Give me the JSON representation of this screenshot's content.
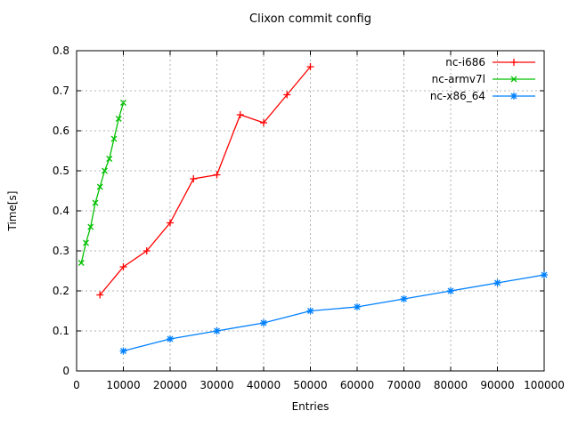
{
  "chart_data": {
    "type": "line",
    "title": "Clixon commit config",
    "xlabel": "Entries",
    "ylabel": "Time[s]",
    "xlim": [
      0,
      100000
    ],
    "ylim": [
      0,
      0.8
    ],
    "grid": true,
    "legend_position": "top-right-inside",
    "background_color": "#ffffff",
    "grid_color": "#b0b0b0",
    "axis_color": "#000000",
    "x_ticks": [
      {
        "value": 0,
        "label": "0"
      },
      {
        "value": 10000,
        "label": "10000"
      },
      {
        "value": 20000,
        "label": "20000"
      },
      {
        "value": 30000,
        "label": "30000"
      },
      {
        "value": 40000,
        "label": "40000"
      },
      {
        "value": 50000,
        "label": "50000"
      },
      {
        "value": 60000,
        "label": "60000"
      },
      {
        "value": 70000,
        "label": "70000"
      },
      {
        "value": 80000,
        "label": "80000"
      },
      {
        "value": 90000,
        "label": "90000"
      },
      {
        "value": 100000,
        "label": "100000"
      }
    ],
    "y_ticks": [
      {
        "value": 0,
        "label": "0"
      },
      {
        "value": 0.1,
        "label": "0.1"
      },
      {
        "value": 0.2,
        "label": "0.2"
      },
      {
        "value": 0.3,
        "label": "0.3"
      },
      {
        "value": 0.4,
        "label": "0.4"
      },
      {
        "value": 0.5,
        "label": "0.5"
      },
      {
        "value": 0.6,
        "label": "0.6"
      },
      {
        "value": 0.7,
        "label": "0.7"
      },
      {
        "value": 0.8,
        "label": "0.8"
      }
    ],
    "series": [
      {
        "name": "nc-i686",
        "color": "#ff0000",
        "marker": "plus",
        "x": [
          5000,
          10000,
          15000,
          20000,
          25000,
          30000,
          35000,
          40000,
          45000,
          50000
        ],
        "values": [
          0.19,
          0.26,
          0.3,
          0.37,
          0.48,
          0.49,
          0.64,
          0.62,
          0.69,
          0.76
        ]
      },
      {
        "name": "nc-armv7l",
        "color": "#00c000",
        "marker": "x",
        "x": [
          1000,
          2000,
          3000,
          4000,
          5000,
          6000,
          7000,
          8000,
          9000,
          10000
        ],
        "values": [
          0.27,
          0.32,
          0.36,
          0.42,
          0.46,
          0.5,
          0.53,
          0.58,
          0.63,
          0.67
        ]
      },
      {
        "name": "nc-x86_64",
        "color": "#0080ff",
        "marker": "asterisk",
        "x": [
          10000,
          20000,
          30000,
          40000,
          50000,
          60000,
          70000,
          80000,
          90000,
          100000
        ],
        "values": [
          0.05,
          0.08,
          0.1,
          0.12,
          0.15,
          0.16,
          0.18,
          0.2,
          0.22,
          0.24
        ]
      }
    ]
  }
}
